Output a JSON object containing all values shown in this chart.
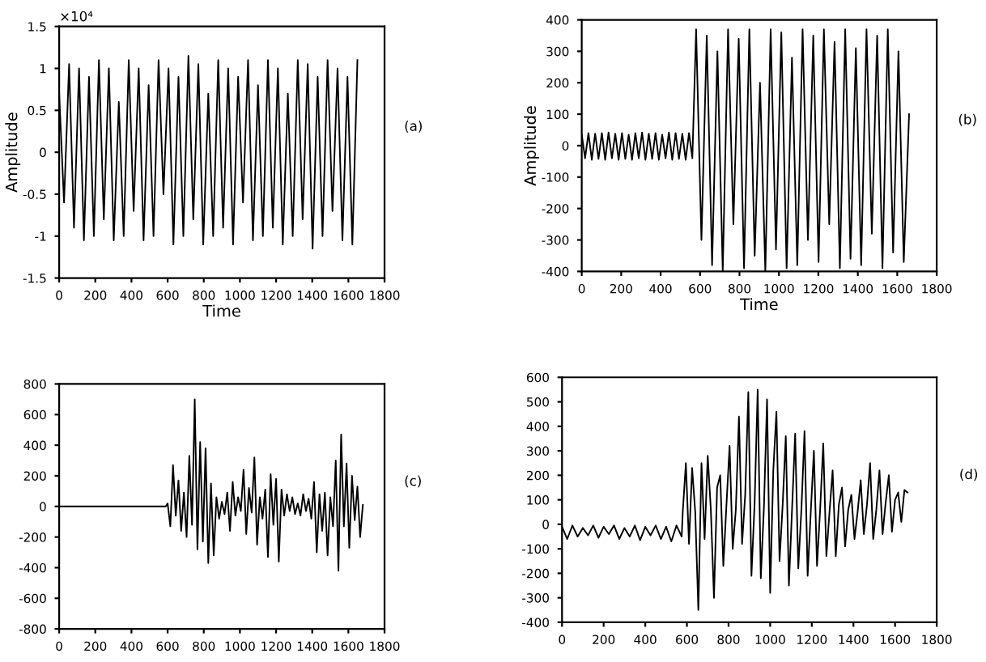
{
  "chart_data": [
    {
      "type": "line",
      "xlabel": "Time",
      "ylabel": "Amplitude",
      "annotations": [
        "(a)",
        "×10⁴"
      ],
      "xlim": [
        0,
        1800
      ],
      "ylim": [
        -1.5,
        1.5
      ],
      "xticks": [
        0,
        200,
        400,
        600,
        800,
        1000,
        1200,
        1400,
        1600,
        1800
      ],
      "yticks": [
        -1.5,
        -1,
        -0.5,
        0,
        0.5,
        1,
        1.5
      ],
      "grid": false,
      "legend": false,
      "series": [
        {
          "color": "#000000",
          "x": [
            0,
            27,
            55,
            82,
            110,
            137,
            165,
            192,
            220,
            247,
            275,
            302,
            330,
            357,
            385,
            412,
            440,
            467,
            495,
            522,
            550,
            577,
            605,
            632,
            660,
            687,
            715,
            742,
            770,
            797,
            825,
            852,
            880,
            907,
            935,
            962,
            990,
            1017,
            1045,
            1072,
            1100,
            1127,
            1155,
            1182,
            1210,
            1237,
            1265,
            1292,
            1320,
            1347,
            1375,
            1402,
            1430,
            1457,
            1485,
            1512,
            1540,
            1567,
            1595,
            1622,
            1650
          ],
          "values": [
            0.7,
            -0.6,
            1.05,
            -0.9,
            1.0,
            -1.05,
            0.9,
            -1.0,
            1.1,
            -0.8,
            1.0,
            -1.05,
            0.6,
            -1.0,
            1.1,
            -0.7,
            1.0,
            -1.05,
            0.8,
            -1.0,
            1.1,
            -0.5,
            1.0,
            -1.1,
            0.9,
            -1.0,
            1.15,
            -0.8,
            1.05,
            -1.1,
            0.7,
            -1.0,
            1.1,
            -0.9,
            1.0,
            -1.1,
            0.9,
            -0.6,
            1.1,
            -1.05,
            0.8,
            -1.0,
            1.1,
            -0.9,
            1.0,
            -1.1,
            0.7,
            -1.0,
            1.1,
            -0.8,
            1.05,
            -1.15,
            0.9,
            -1.0,
            1.1,
            -0.7,
            1.0,
            -1.05,
            0.9,
            -1.1,
            1.1
          ]
        }
      ]
    },
    {
      "type": "line",
      "xlabel": "Time",
      "ylabel": "Amplitude",
      "annotations": [
        "(b)"
      ],
      "xlim": [
        0,
        1800
      ],
      "ylim": [
        -400,
        400
      ],
      "xticks": [
        0,
        200,
        400,
        600,
        800,
        1000,
        1200,
        1400,
        1600,
        1800
      ],
      "yticks": [
        -400,
        -300,
        -200,
        -100,
        0,
        100,
        200,
        300,
        400
      ],
      "grid": false,
      "legend": false,
      "series": [
        {
          "color": "#000000",
          "x": [
            0,
            17,
            34,
            51,
            68,
            85,
            102,
            119,
            136,
            153,
            170,
            187,
            204,
            221,
            238,
            255,
            272,
            289,
            306,
            323,
            340,
            357,
            374,
            391,
            408,
            425,
            442,
            459,
            476,
            493,
            510,
            527,
            544,
            561,
            580,
            607,
            634,
            661,
            688,
            715,
            742,
            769,
            796,
            823,
            850,
            877,
            904,
            931,
            958,
            985,
            1012,
            1039,
            1066,
            1093,
            1120,
            1147,
            1174,
            1201,
            1228,
            1255,
            1282,
            1309,
            1336,
            1363,
            1390,
            1417,
            1444,
            1471,
            1498,
            1525,
            1552,
            1579,
            1606,
            1633,
            1660
          ],
          "values": [
            35,
            -40,
            40,
            -45,
            38,
            -42,
            40,
            -45,
            42,
            -40,
            38,
            -45,
            40,
            -42,
            35,
            -45,
            40,
            -40,
            42,
            -45,
            38,
            -42,
            40,
            -45,
            35,
            -40,
            42,
            -45,
            40,
            -42,
            38,
            -45,
            40,
            -40,
            370,
            -300,
            350,
            -380,
            300,
            -400,
            370,
            -250,
            340,
            -390,
            370,
            -350,
            200,
            -400,
            370,
            -330,
            360,
            -390,
            280,
            -380,
            370,
            -300,
            350,
            -370,
            370,
            -250,
            330,
            -390,
            370,
            -360,
            310,
            -380,
            370,
            -280,
            350,
            -390,
            370,
            -340,
            300,
            -370,
            100
          ]
        }
      ]
    },
    {
      "type": "line",
      "annotations": [
        "(c)"
      ],
      "xlim": [
        0,
        1800
      ],
      "ylim": [
        -800,
        800
      ],
      "xticks": [
        0,
        200,
        400,
        600,
        800,
        1000,
        1200,
        1400,
        1600,
        1800
      ],
      "yticks": [
        -800,
        -600,
        -400,
        -200,
        0,
        200,
        400,
        600,
        800
      ],
      "grid": false,
      "legend": false,
      "series": [
        {
          "color": "#000000",
          "x": [
            0,
            100,
            200,
            300,
            400,
            500,
            590,
            600,
            615,
            630,
            645,
            660,
            675,
            690,
            705,
            720,
            735,
            750,
            765,
            780,
            795,
            810,
            825,
            840,
            855,
            870,
            885,
            900,
            915,
            930,
            945,
            960,
            975,
            990,
            1005,
            1020,
            1035,
            1050,
            1065,
            1080,
            1095,
            1110,
            1125,
            1140,
            1155,
            1170,
            1185,
            1200,
            1215,
            1230,
            1245,
            1260,
            1275,
            1290,
            1305,
            1320,
            1335,
            1350,
            1365,
            1380,
            1395,
            1410,
            1425,
            1440,
            1455,
            1470,
            1485,
            1500,
            1515,
            1530,
            1545,
            1560,
            1575,
            1590,
            1605,
            1620,
            1635,
            1650,
            1665,
            1680
          ],
          "values": [
            0,
            0,
            0,
            0,
            0,
            0,
            0,
            20,
            -130,
            270,
            -60,
            170,
            -160,
            90,
            -200,
            330,
            -120,
            700,
            -280,
            420,
            -230,
            380,
            -370,
            150,
            -320,
            60,
            -80,
            30,
            -50,
            90,
            -160,
            160,
            -60,
            60,
            -30,
            240,
            -180,
            120,
            -40,
            320,
            -250,
            60,
            -80,
            110,
            -330,
            210,
            -120,
            180,
            -360,
            110,
            -60,
            80,
            -30,
            60,
            -50,
            20,
            -60,
            80,
            -30,
            50,
            -80,
            160,
            -300,
            80,
            -160,
            90,
            -320,
            60,
            -130,
            300,
            -420,
            470,
            -130,
            280,
            -270,
            200,
            -90,
            130,
            -200,
            10
          ]
        }
      ]
    },
    {
      "type": "line",
      "annotations": [
        "(d)"
      ],
      "xlim": [
        0,
        1800
      ],
      "ylim": [
        -400,
        600
      ],
      "xticks": [
        0,
        200,
        400,
        600,
        800,
        1000,
        1200,
        1400,
        1600,
        1800
      ],
      "yticks": [
        -400,
        -300,
        -200,
        -100,
        0,
        100,
        200,
        300,
        400,
        500,
        600
      ],
      "grid": false,
      "legend": false,
      "series": [
        {
          "color": "#000000",
          "x": [
            0,
            25,
            50,
            75,
            100,
            125,
            150,
            175,
            200,
            225,
            250,
            275,
            300,
            325,
            350,
            375,
            400,
            425,
            450,
            475,
            500,
            525,
            550,
            575,
            580,
            595,
            610,
            625,
            640,
            655,
            670,
            685,
            700,
            715,
            730,
            745,
            760,
            775,
            790,
            805,
            820,
            835,
            850,
            865,
            880,
            895,
            910,
            925,
            940,
            955,
            970,
            985,
            1000,
            1015,
            1030,
            1045,
            1060,
            1075,
            1090,
            1105,
            1120,
            1135,
            1150,
            1165,
            1180,
            1195,
            1210,
            1225,
            1240,
            1255,
            1270,
            1285,
            1300,
            1315,
            1330,
            1345,
            1360,
            1375,
            1390,
            1405,
            1420,
            1435,
            1450,
            1465,
            1480,
            1495,
            1510,
            1525,
            1540,
            1555,
            1570,
            1585,
            1600,
            1615,
            1630,
            1645,
            1660
          ],
          "values": [
            -10,
            -60,
            -5,
            -50,
            -15,
            -45,
            -5,
            -55,
            -10,
            -40,
            -5,
            -60,
            -15,
            -50,
            -5,
            -65,
            -10,
            -45,
            -5,
            -60,
            -10,
            -70,
            -5,
            -50,
            50,
            250,
            -80,
            230,
            50,
            -350,
            250,
            -60,
            280,
            60,
            -300,
            150,
            200,
            -170,
            80,
            320,
            -100,
            60,
            440,
            -80,
            120,
            540,
            -210,
            80,
            550,
            -220,
            70,
            510,
            -280,
            220,
            460,
            -150,
            80,
            360,
            -250,
            60,
            370,
            -180,
            60,
            380,
            -210,
            50,
            300,
            -170,
            60,
            330,
            -130,
            50,
            220,
            -130,
            80,
            150,
            -90,
            60,
            120,
            -60,
            50,
            180,
            -40,
            80,
            250,
            -60,
            60,
            220,
            -40,
            90,
            200,
            -30,
            100,
            130,
            10,
            140,
            130
          ]
        }
      ]
    }
  ]
}
